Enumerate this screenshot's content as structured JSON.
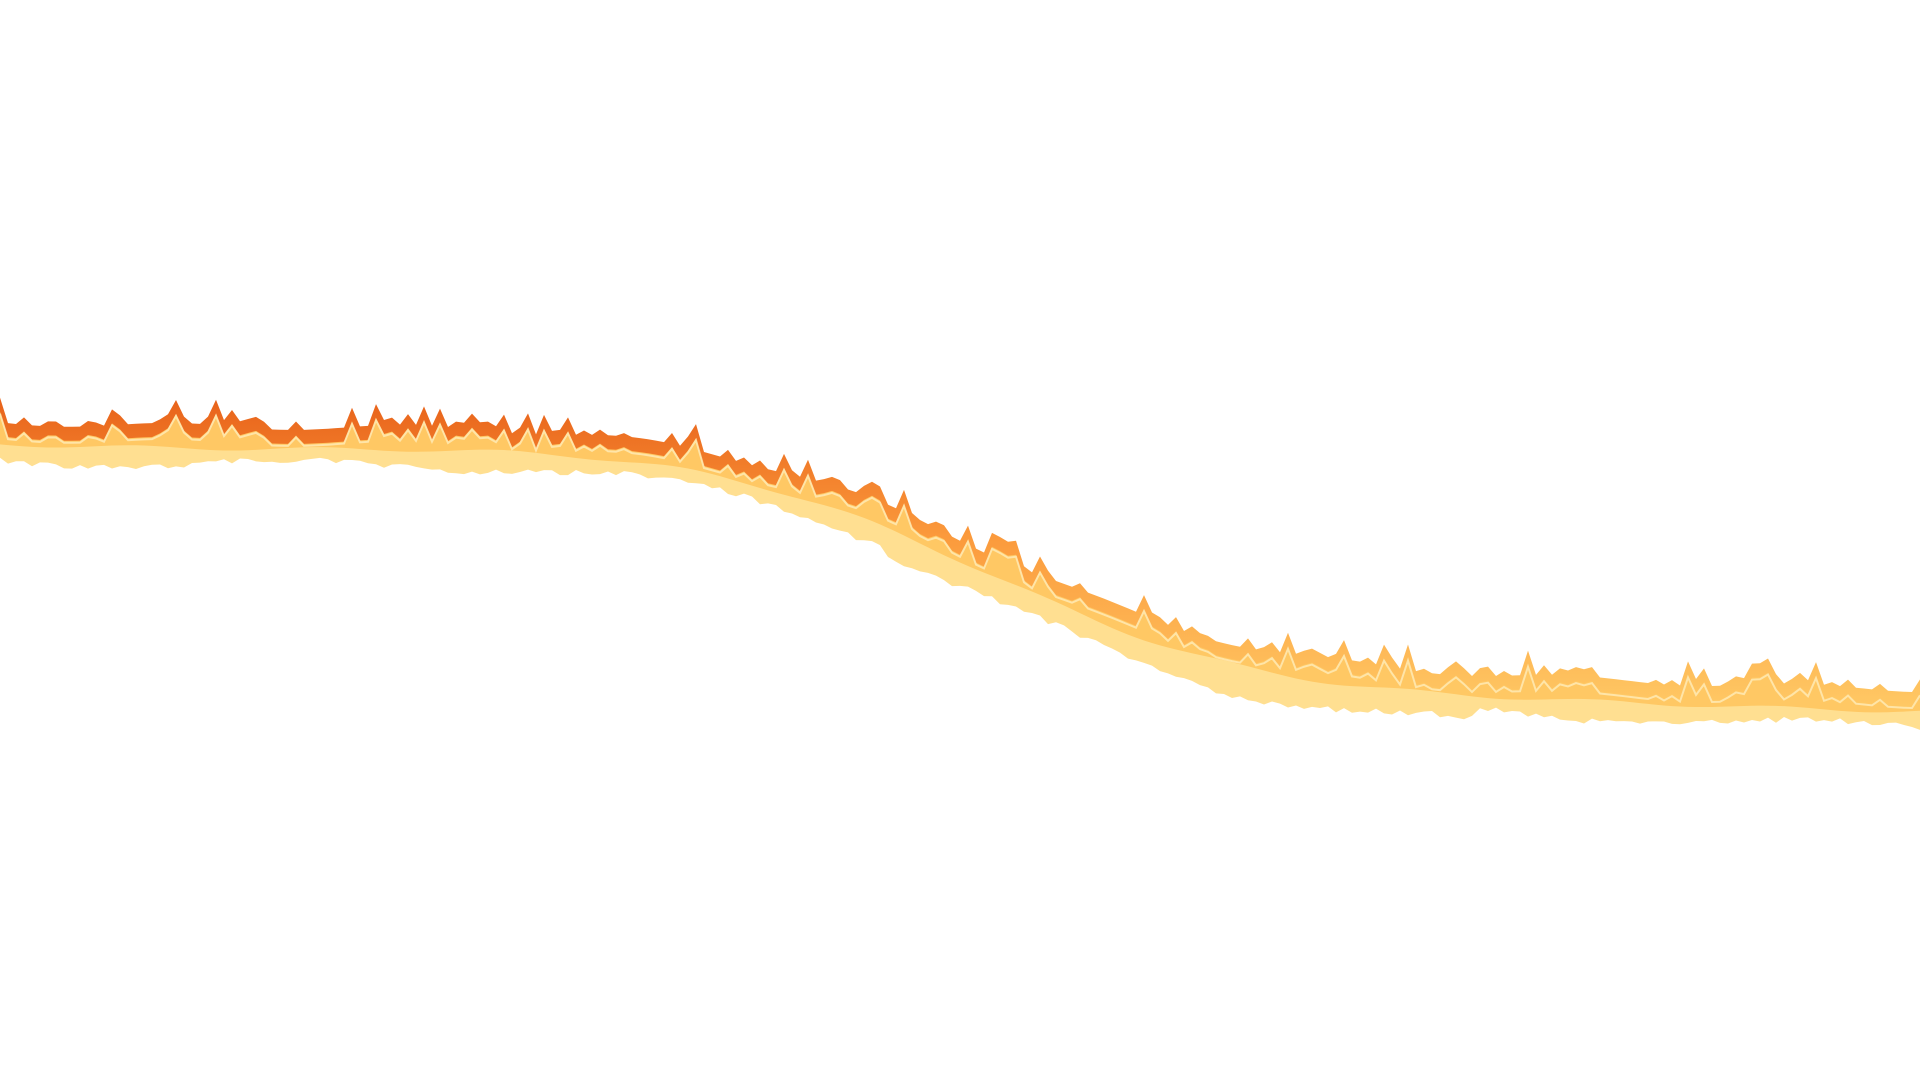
{
  "scene": {
    "description_visible_text": "",
    "background_color": "#ffffff",
    "ribbon": {
      "colors": {
        "base_fill": "#ffdf91",
        "mid_fill": "#ffc864",
        "ridge_orange": "#fb9a3c",
        "ridge_dark": "#e8621a",
        "highlight": "#fff1c4"
      }
    }
  }
}
